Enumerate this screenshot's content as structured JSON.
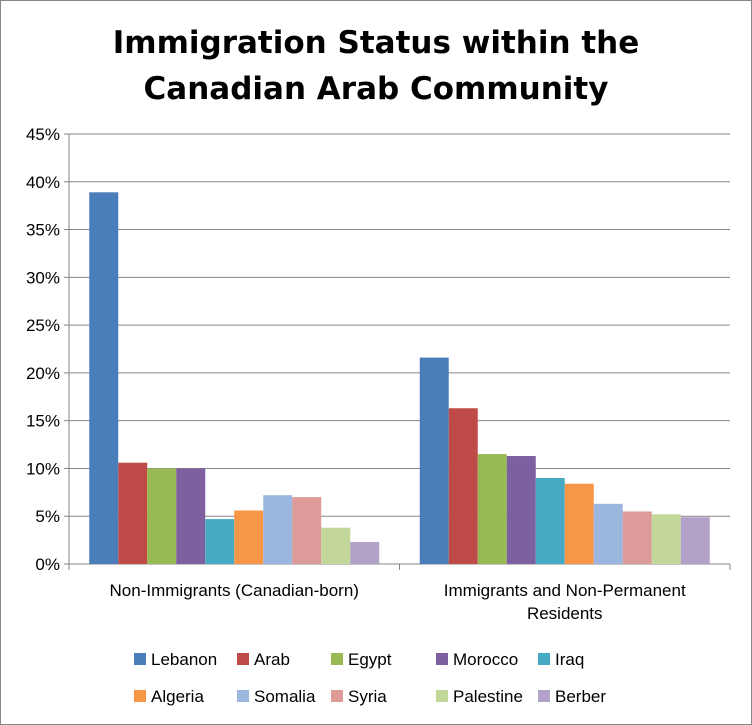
{
  "chart_data": {
    "type": "bar",
    "title": "Immigration Status within the Canadian Arab Community",
    "title_lines": [
      "Immigration Status within the",
      "Canadian Arab Community"
    ],
    "xlabel": "",
    "ylabel": "",
    "ylim": [
      0,
      0.45
    ],
    "y_ticks": [
      0,
      0.05,
      0.1,
      0.15,
      0.2,
      0.25,
      0.3,
      0.35,
      0.4,
      0.45
    ],
    "y_tick_labels": [
      "0%",
      "5%",
      "10%",
      "15%",
      "20%",
      "25%",
      "30%",
      "35%",
      "40%",
      "45%"
    ],
    "grid": true,
    "legend_position": "bottom",
    "categories": [
      "Non-Immigrants (Canadian-born)",
      "Immigrants and Non-Permanent Residents"
    ],
    "category_label_lines": [
      [
        "Non-Immigrants (Canadian-born)"
      ],
      [
        "Immigrants and Non-Permanent",
        "Residents"
      ]
    ],
    "series": [
      {
        "name": "Lebanon",
        "color": "#4a7ebb",
        "values": [
          0.389,
          0.216
        ]
      },
      {
        "name": "Arab",
        "color": "#be4b48",
        "values": [
          0.106,
          0.163
        ]
      },
      {
        "name": "Egypt",
        "color": "#98b954",
        "values": [
          0.1,
          0.115
        ]
      },
      {
        "name": "Morocco",
        "color": "#7d60a0",
        "values": [
          0.1,
          0.113
        ]
      },
      {
        "name": "Iraq",
        "color": "#46aac5",
        "values": [
          0.047,
          0.09
        ]
      },
      {
        "name": "Algeria",
        "color": "#f79646",
        "values": [
          0.056,
          0.084
        ]
      },
      {
        "name": "Somalia",
        "color": "#9bb7e0",
        "values": [
          0.072,
          0.063
        ]
      },
      {
        "name": "Syria",
        "color": "#dc9a99",
        "values": [
          0.07,
          0.055
        ]
      },
      {
        "name": "Palestine",
        "color": "#c3d79b",
        "values": [
          0.038,
          0.052
        ]
      },
      {
        "name": "Berber",
        "color": "#b3a2c7",
        "values": [
          0.023,
          0.049
        ]
      }
    ]
  }
}
